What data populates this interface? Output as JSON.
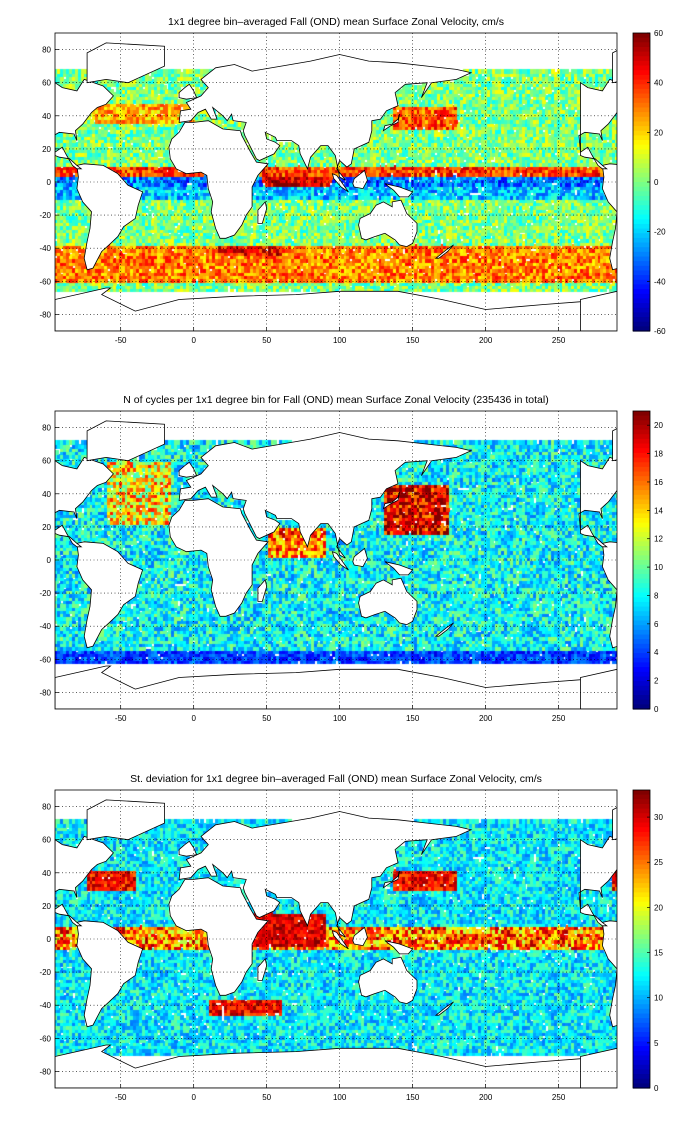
{
  "panels": [
    {
      "id": "mean",
      "title": "1x1 degree bin–averaged Fall (OND) mean Surface Zonal Velocity, cm/s",
      "colorbar": {
        "min": -60,
        "max": 60,
        "ticks": [
          "60",
          "40",
          "20",
          "0",
          "-20",
          "-40",
          "-60"
        ]
      },
      "field": "velocity"
    },
    {
      "id": "count",
      "title": "N of cycles per 1x1 degree bin for Fall (OND) mean Surface Zonal Velocity (235436 in total)",
      "colorbar": {
        "min": 0,
        "max": 21,
        "ticks": [
          "20",
          "18",
          "16",
          "14",
          "12",
          "10",
          "8",
          "6",
          "4",
          "2",
          "0"
        ]
      },
      "field": "count"
    },
    {
      "id": "std",
      "title": "St. deviation for 1x1 degree bin–averaged Fall (OND) mean Surface Zonal Velocity, cm/s",
      "colorbar": {
        "min": 0,
        "max": 33,
        "ticks": [
          "30",
          "25",
          "20",
          "15",
          "10",
          "5",
          "0"
        ]
      },
      "field": "stdev"
    }
  ],
  "axes": {
    "x_ticks": [
      "-50",
      "0",
      "50",
      "100",
      "150",
      "200",
      "250"
    ],
    "y_ticks": [
      "80",
      "60",
      "40",
      "20",
      "0",
      "-20",
      "-40",
      "-60",
      "-80"
    ],
    "x_range": [
      -95,
      290
    ],
    "y_range": [
      -90,
      90
    ]
  },
  "colormap": "jet"
}
